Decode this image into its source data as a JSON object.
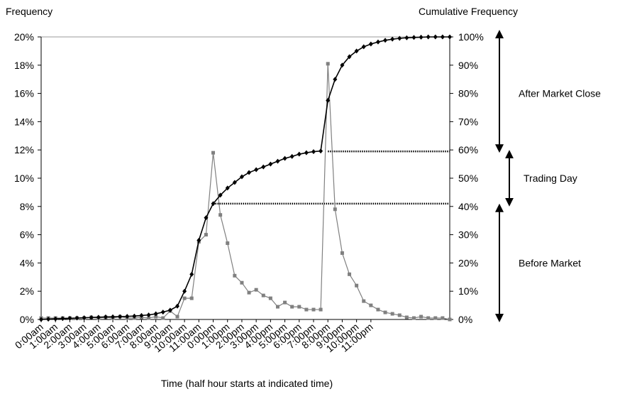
{
  "chart_data": {
    "type": "line",
    "title": "",
    "left_axis_title": "Frequency",
    "right_axis_title": "Cumulative Frequency",
    "xlabel": "Time (half hour starts at indicated time)",
    "left_ylim": [
      0,
      20
    ],
    "right_ylim": [
      0,
      100
    ],
    "left_ticks": [
      "0%",
      "2%",
      "4%",
      "6%",
      "8%",
      "10%",
      "12%",
      "14%",
      "16%",
      "18%",
      "20%"
    ],
    "right_ticks": [
      "0%",
      "10%",
      "20%",
      "30%",
      "40%",
      "50%",
      "60%",
      "70%",
      "80%",
      "90%",
      "100%"
    ],
    "x_tick_labels": [
      "0:00am",
      "1:00am",
      "2:00am",
      "3:00am",
      "4:00am",
      "5:00am",
      "6:00am",
      "7:00am",
      "8:00am",
      "9:00am",
      "10:00am",
      "11:00am",
      "0:00pm",
      "1:00pm",
      "2:00pm",
      "3:00pm",
      "4:00pm",
      "5:00pm",
      "6:00pm",
      "7:00pm",
      "8:00pm",
      "9:00pm",
      "10:00pm",
      "11:00pm"
    ],
    "grid": false,
    "series": [
      {
        "axis": "left",
        "color": "#808080",
        "marker": "square",
        "values": [
          0.1,
          0.1,
          0.1,
          0.1,
          0.1,
          0.1,
          0.1,
          0.15,
          0.1,
          0.15,
          0.1,
          0.2,
          0.1,
          0.1,
          0.15,
          0.1,
          0.2,
          0.1,
          0.6,
          0.2,
          1.5,
          1.5,
          5.5,
          6.0,
          11.8,
          7.4,
          5.4,
          3.1,
          2.6,
          1.9,
          2.1,
          1.7,
          1.5,
          0.9,
          1.2,
          0.9,
          0.9,
          0.7,
          0.7,
          0.7,
          18.1,
          7.8,
          4.7,
          3.2,
          2.4,
          1.3,
          1.0,
          0.7,
          0.5,
          0.4,
          0.3,
          0.15,
          0.1,
          0.2,
          0.1,
          0.1,
          0.1,
          0.0
        ]
      },
      {
        "axis": "right",
        "color": "#000000",
        "marker": "diamond",
        "values": [
          0.0,
          0.1,
          0.2,
          0.3,
          0.4,
          0.5,
          0.6,
          0.7,
          0.8,
          0.9,
          0.95,
          1.0,
          1.1,
          1.2,
          1.4,
          1.6,
          2.0,
          2.6,
          3.3,
          4.7,
          10.0,
          16.0,
          28.0,
          36.0,
          41.0,
          44.0,
          46.5,
          48.5,
          50.5,
          52.0,
          53.0,
          54.0,
          55.0,
          56.0,
          57.0,
          57.7,
          58.5,
          59.0,
          59.4,
          59.6,
          77.5,
          85.0,
          90.0,
          93.0,
          95.0,
          96.5,
          97.5,
          98.2,
          98.8,
          99.2,
          99.5,
          99.7,
          99.8,
          99.9,
          100.0,
          100.0,
          100.0,
          100.0
        ]
      }
    ],
    "reference_lines": [
      {
        "axis": "right",
        "value": 41,
        "x_from_index": 24
      },
      {
        "axis": "right",
        "value": 59.5,
        "x_from_index": 40
      }
    ],
    "annotations": [
      {
        "text": "After Market Close",
        "range": [
          60,
          100
        ]
      },
      {
        "text": "Trading Day",
        "range": [
          41,
          59
        ]
      },
      {
        "text": "Before Market",
        "range": [
          0,
          40
        ]
      }
    ]
  }
}
